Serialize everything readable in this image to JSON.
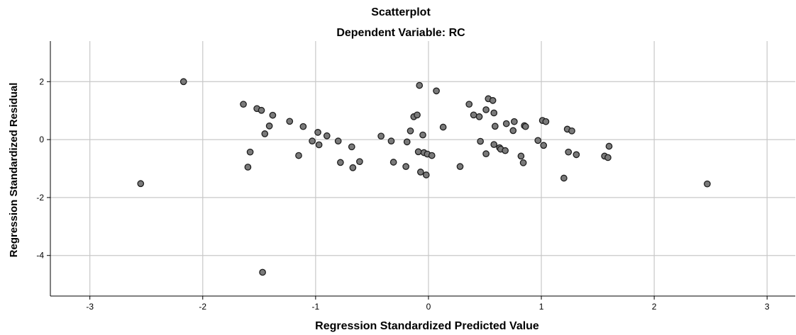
{
  "chart_data": {
    "type": "scatter",
    "title": "Scatterplot",
    "subtitle": "Dependent Variable: RC",
    "xlabel": "Regression Standardized Predicted Value",
    "ylabel": "Regression Standardized Residual",
    "xlim": [
      -3.35,
      3.25
    ],
    "ylim": [
      -5.4,
      3.4
    ],
    "xticks": [
      -3,
      -2,
      -1,
      0,
      1,
      2,
      3
    ],
    "yticks": [
      -4,
      -2,
      0,
      2
    ],
    "grid": true,
    "legend": "none",
    "point_color": "#7a7a7a",
    "point_edge_color": "#1e1e1e",
    "grid_color": "#c8c8c8",
    "points": [
      {
        "x": -2.55,
        "y": -1.52
      },
      {
        "x": -2.17,
        "y": 2.0
      },
      {
        "x": -1.64,
        "y": 1.22
      },
      {
        "x": -1.6,
        "y": -0.95
      },
      {
        "x": -1.58,
        "y": -0.43
      },
      {
        "x": -1.52,
        "y": 1.07
      },
      {
        "x": -1.48,
        "y": 1.01
      },
      {
        "x": -1.47,
        "y": -4.58
      },
      {
        "x": -1.45,
        "y": 0.2
      },
      {
        "x": -1.41,
        "y": 0.47
      },
      {
        "x": -1.38,
        "y": 0.84
      },
      {
        "x": -1.23,
        "y": 0.63
      },
      {
        "x": -1.15,
        "y": -0.55
      },
      {
        "x": -1.11,
        "y": 0.45
      },
      {
        "x": -1.03,
        "y": -0.05
      },
      {
        "x": -0.98,
        "y": 0.25
      },
      {
        "x": -0.97,
        "y": -0.18
      },
      {
        "x": -0.9,
        "y": 0.13
      },
      {
        "x": -0.8,
        "y": -0.05
      },
      {
        "x": -0.78,
        "y": -0.79
      },
      {
        "x": -0.68,
        "y": -0.25
      },
      {
        "x": -0.67,
        "y": -0.97
      },
      {
        "x": -0.61,
        "y": -0.76
      },
      {
        "x": -0.42,
        "y": 0.12
      },
      {
        "x": -0.33,
        "y": -0.05
      },
      {
        "x": -0.31,
        "y": -0.78
      },
      {
        "x": -0.2,
        "y": -0.93
      },
      {
        "x": -0.19,
        "y": -0.08
      },
      {
        "x": -0.16,
        "y": 0.3
      },
      {
        "x": -0.13,
        "y": 0.79
      },
      {
        "x": -0.1,
        "y": 0.85
      },
      {
        "x": -0.09,
        "y": -0.42
      },
      {
        "x": -0.08,
        "y": 1.87
      },
      {
        "x": -0.07,
        "y": -1.12
      },
      {
        "x": -0.05,
        "y": 0.16
      },
      {
        "x": -0.04,
        "y": -0.45
      },
      {
        "x": -0.02,
        "y": -1.22
      },
      {
        "x": -0.01,
        "y": -0.5
      },
      {
        "x": 0.03,
        "y": -0.55
      },
      {
        "x": 0.07,
        "y": 1.68
      },
      {
        "x": 0.13,
        "y": 0.43
      },
      {
        "x": 0.28,
        "y": -0.93
      },
      {
        "x": 0.36,
        "y": 1.22
      },
      {
        "x": 0.4,
        "y": 0.85
      },
      {
        "x": 0.45,
        "y": 0.79
      },
      {
        "x": 0.46,
        "y": -0.06
      },
      {
        "x": 0.51,
        "y": 1.03
      },
      {
        "x": 0.51,
        "y": -0.49
      },
      {
        "x": 0.53,
        "y": 1.41
      },
      {
        "x": 0.57,
        "y": 1.35
      },
      {
        "x": 0.58,
        "y": 0.92
      },
      {
        "x": 0.58,
        "y": -0.17
      },
      {
        "x": 0.59,
        "y": 0.46
      },
      {
        "x": 0.63,
        "y": -0.28
      },
      {
        "x": 0.64,
        "y": -0.33
      },
      {
        "x": 0.68,
        "y": -0.38
      },
      {
        "x": 0.69,
        "y": 0.55
      },
      {
        "x": 0.75,
        "y": 0.31
      },
      {
        "x": 0.76,
        "y": 0.62
      },
      {
        "x": 0.82,
        "y": -0.57
      },
      {
        "x": 0.84,
        "y": -0.8
      },
      {
        "x": 0.85,
        "y": 0.48
      },
      {
        "x": 0.86,
        "y": 0.45
      },
      {
        "x": 0.97,
        "y": -0.03
      },
      {
        "x": 1.01,
        "y": 0.66
      },
      {
        "x": 1.02,
        "y": -0.2
      },
      {
        "x": 1.04,
        "y": 0.62
      },
      {
        "x": 1.2,
        "y": -1.33
      },
      {
        "x": 1.23,
        "y": 0.36
      },
      {
        "x": 1.24,
        "y": -0.43
      },
      {
        "x": 1.27,
        "y": 0.3
      },
      {
        "x": 1.31,
        "y": -0.52
      },
      {
        "x": 1.56,
        "y": -0.57
      },
      {
        "x": 1.59,
        "y": -0.62
      },
      {
        "x": 1.6,
        "y": -0.23
      },
      {
        "x": 2.47,
        "y": -1.53
      }
    ]
  }
}
